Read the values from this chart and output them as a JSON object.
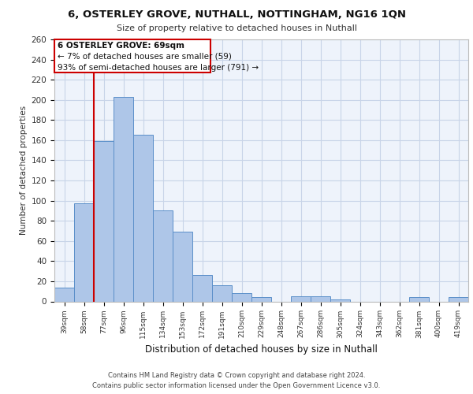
{
  "title1": "6, OSTERLEY GROVE, NUTHALL, NOTTINGHAM, NG16 1QN",
  "title2": "Size of property relative to detached houses in Nuthall",
  "xlabel": "Distribution of detached houses by size in Nuthall",
  "ylabel": "Number of detached properties",
  "categories": [
    "39sqm",
    "58sqm",
    "77sqm",
    "96sqm",
    "115sqm",
    "134sqm",
    "153sqm",
    "172sqm",
    "191sqm",
    "210sqm",
    "229sqm",
    "248sqm",
    "267sqm",
    "286sqm",
    "305sqm",
    "324sqm",
    "343sqm",
    "362sqm",
    "381sqm",
    "400sqm",
    "419sqm"
  ],
  "values": [
    14,
    97,
    159,
    203,
    165,
    90,
    69,
    26,
    16,
    8,
    4,
    0,
    5,
    5,
    2,
    0,
    0,
    0,
    4,
    0,
    4
  ],
  "bar_color": "#aec6e8",
  "bar_edge_color": "#5b8fc9",
  "vline_x": 1.5,
  "vline_color": "#cc0000",
  "annotation_title": "6 OSTERLEY GROVE: 69sqm",
  "annotation_line1": "← 7% of detached houses are smaller (59)",
  "annotation_line2": "93% of semi-detached houses are larger (791) →",
  "annotation_box_color": "#ffffff",
  "annotation_box_edge": "#cc0000",
  "ylim": [
    0,
    260
  ],
  "yticks": [
    0,
    20,
    40,
    60,
    80,
    100,
    120,
    140,
    160,
    180,
    200,
    220,
    240,
    260
  ],
  "grid_color": "#c8d4e8",
  "bg_color": "#eef3fb",
  "footer1": "Contains HM Land Registry data © Crown copyright and database right 2024.",
  "footer2": "Contains public sector information licensed under the Open Government Licence v3.0."
}
